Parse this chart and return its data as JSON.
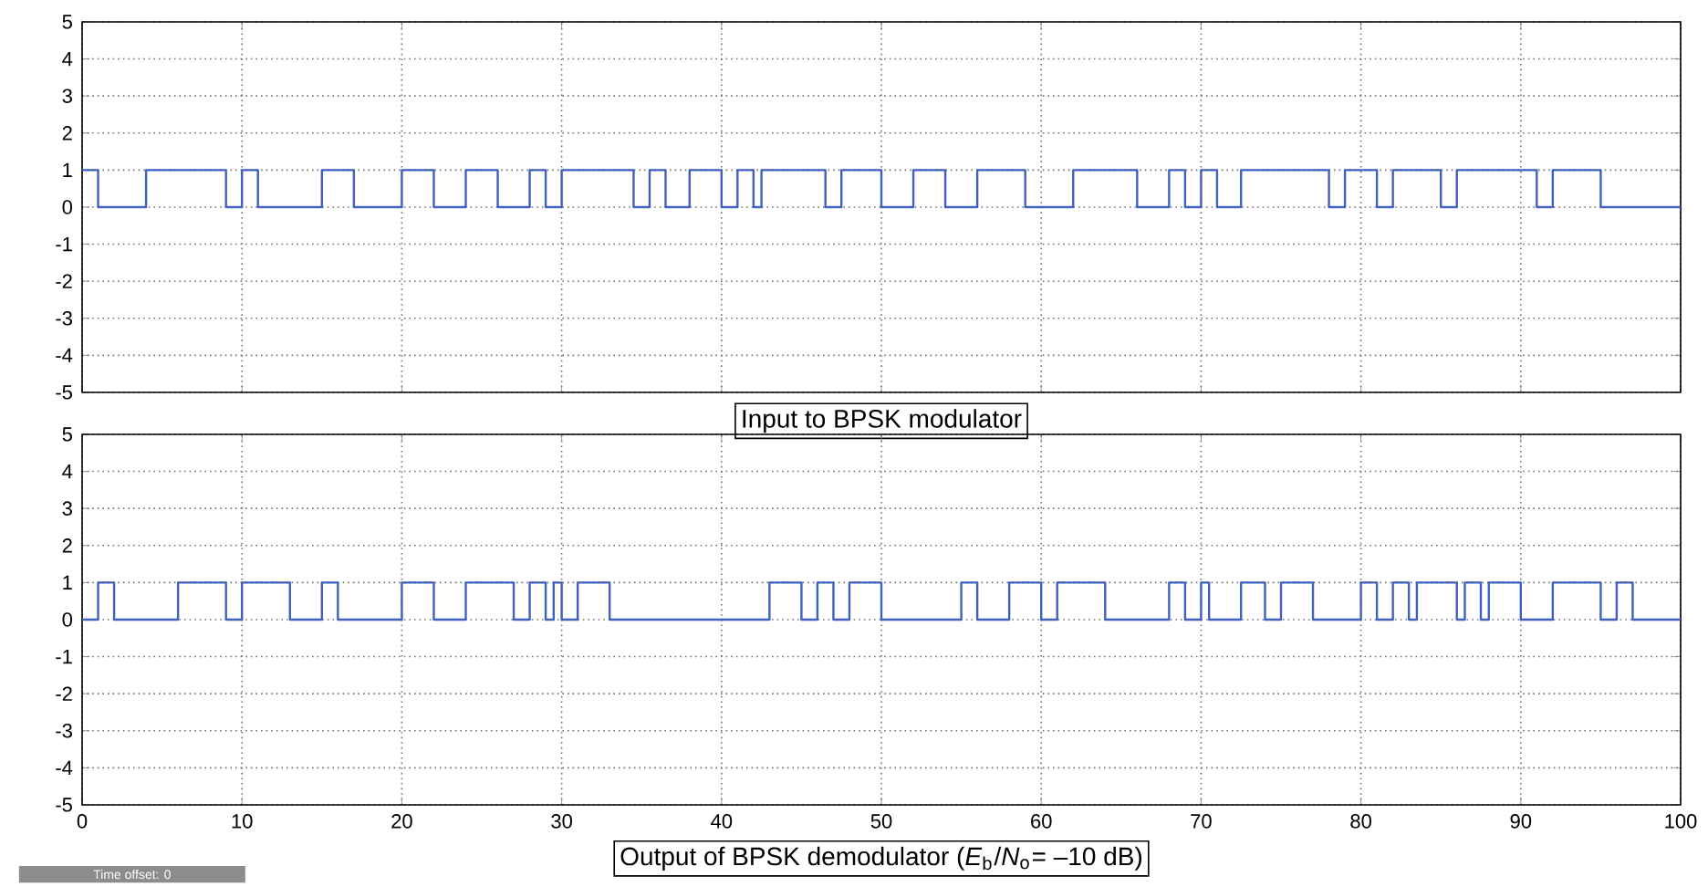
{
  "chart_data": [
    {
      "type": "step",
      "xlabel": "Input to BPSK modulator",
      "tick_labels": "y",
      "grid": true,
      "line_style": "solid",
      "marker": "none",
      "xlim": [
        0,
        100
      ],
      "ylim": [
        -5,
        5
      ],
      "xticks": [
        0,
        10,
        20,
        30,
        40,
        50,
        60,
        70,
        80,
        90,
        100
      ],
      "yticks": [
        -5,
        -4,
        -3,
        -2,
        -1,
        0,
        1,
        2,
        3,
        4,
        5
      ],
      "series": [
        {
          "color": "#4060c0",
          "x": [
            0,
            1,
            4,
            9,
            10,
            11,
            15,
            17,
            20,
            22,
            24,
            26,
            28,
            29,
            30,
            34.5,
            35.5,
            36.5,
            38,
            40,
            41,
            42,
            42.5,
            46.5,
            47.5,
            50,
            52,
            54,
            56,
            59,
            62,
            66,
            68,
            69,
            70,
            71,
            72.5,
            78,
            79,
            81,
            82,
            85,
            86,
            91,
            92,
            95,
            100
          ],
          "values": [
            1,
            0,
            1,
            0,
            1,
            0,
            1,
            0,
            1,
            0,
            1,
            0,
            1,
            0,
            1,
            0,
            1,
            0,
            1,
            0,
            1,
            0,
            1,
            0,
            1,
            0,
            1,
            0,
            1,
            0,
            1,
            0,
            1,
            0,
            1,
            0,
            1,
            0,
            1,
            0,
            1,
            0,
            1,
            0,
            1,
            0,
            0
          ]
        }
      ]
    },
    {
      "type": "step",
      "xlabel": "Output of BPSK demodulator (*E*$_{b}$/*N*$_{o}$= –10 dB)",
      "grid": true,
      "line_style": "solid",
      "marker": "none",
      "xlim": [
        0,
        100
      ],
      "ylim": [
        -5,
        5
      ],
      "xticks": [
        0,
        10,
        20,
        30,
        40,
        50,
        60,
        70,
        80,
        90,
        100
      ],
      "yticks": [
        -5,
        -4,
        -3,
        -2,
        -1,
        0,
        1,
        2,
        3,
        4,
        5
      ],
      "annotations": [
        "Time offset: 0"
      ],
      "series": [
        {
          "color": "#4060c0",
          "x": [
            0,
            1,
            2,
            6,
            9,
            10,
            13,
            15,
            16,
            20,
            22,
            24,
            27,
            28,
            29,
            29.5,
            30,
            31,
            33,
            43,
            45,
            46,
            47,
            48,
            50,
            55,
            56,
            58,
            60,
            61,
            64,
            68,
            69,
            70,
            70.5,
            72.5,
            74,
            75,
            77,
            80,
            81,
            82,
            83,
            83.5,
            86,
            86.5,
            87.5,
            88,
            90,
            92,
            95,
            96,
            97,
            100
          ],
          "values": [
            0,
            1,
            0,
            1,
            0,
            1,
            0,
            1,
            0,
            1,
            0,
            1,
            0,
            1,
            0,
            1,
            0,
            1,
            0,
            1,
            0,
            1,
            0,
            1,
            0,
            1,
            0,
            1,
            0,
            1,
            0,
            1,
            0,
            1,
            0,
            1,
            0,
            1,
            0,
            1,
            0,
            1,
            0,
            1,
            0,
            1,
            0,
            1,
            0,
            1,
            0,
            1,
            0,
            0
          ]
        }
      ]
    }
  ]
}
